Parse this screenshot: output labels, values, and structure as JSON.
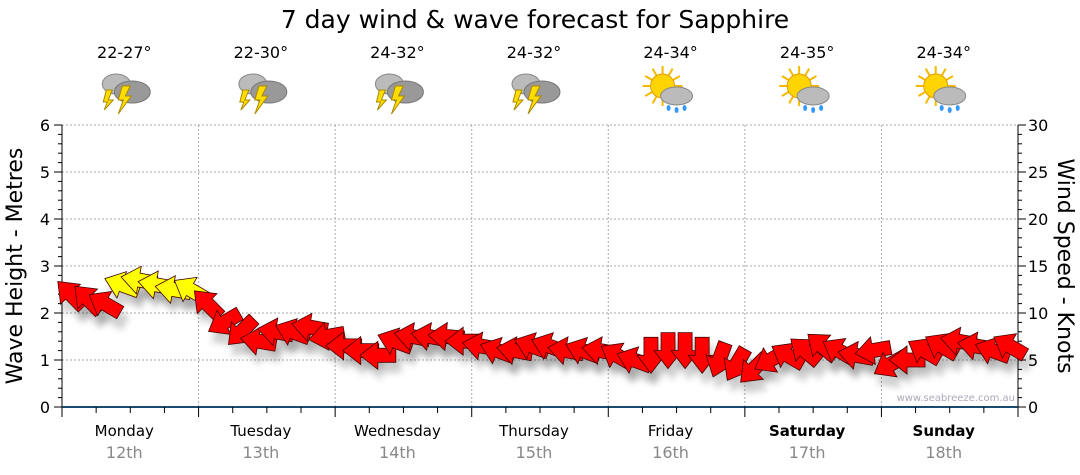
{
  "chart_data": {
    "type": "line",
    "title": "7 day wind & wave forecast for Sapphire",
    "ylabel_left": "Wave Height - Metres",
    "ylabel_right": "Wind Speed - Knots",
    "ylim_left": [
      0,
      6
    ],
    "ylim_right": [
      0,
      30
    ],
    "yticks_left": [
      "0",
      "1",
      "2",
      "3",
      "4",
      "5",
      "6"
    ],
    "yticks_right": [
      "0",
      "5",
      "10",
      "15",
      "20",
      "25",
      "30"
    ],
    "grid": true,
    "watermark": "www.seabreeze.com.au",
    "days": [
      {
        "name": "Monday",
        "date": "12th",
        "temp": "22-27°",
        "icon": "storm-icon",
        "bold": false
      },
      {
        "name": "Tuesday",
        "date": "13th",
        "temp": "22-30°",
        "icon": "storm-icon",
        "bold": false
      },
      {
        "name": "Wednesday",
        "date": "14th",
        "temp": "24-32°",
        "icon": "storm-icon",
        "bold": false
      },
      {
        "name": "Thursday",
        "date": "15th",
        "temp": "24-32°",
        "icon": "storm-icon",
        "bold": false
      },
      {
        "name": "Friday",
        "date": "16th",
        "temp": "24-34°",
        "icon": "sun-shower-icon",
        "bold": false
      },
      {
        "name": "Saturday",
        "date": "17th",
        "temp": "24-35°",
        "icon": "sun-shower-icon",
        "bold": true
      },
      {
        "name": "Sunday",
        "date": "18th",
        "temp": "24-34°",
        "icon": "sun-shower-icon",
        "bold": true
      }
    ],
    "wind_series": {
      "name": "Wind Speed (knots), 3-hourly",
      "speed": [
        12,
        11.5,
        11,
        13,
        13.5,
        13,
        12.5,
        12.5,
        11,
        9,
        8,
        7,
        8,
        8,
        8.5,
        7.5,
        6.5,
        6,
        5.5,
        7,
        7.5,
        7.5,
        7.5,
        7,
        6.5,
        6,
        6,
        6.5,
        6.5,
        6,
        6,
        6,
        5.5,
        5,
        5.5,
        6,
        6,
        5.5,
        5,
        4.5,
        4,
        5,
        5.5,
        6,
        6.5,
        6,
        5.5,
        6,
        4.5,
        5,
        6,
        6.5,
        7,
        6.5,
        6,
        6.5
      ],
      "direction_from_deg": [
        135,
        135,
        120,
        110,
        100,
        100,
        100,
        120,
        135,
        60,
        45,
        100,
        100,
        110,
        100,
        80,
        90,
        90,
        90,
        110,
        100,
        100,
        95,
        90,
        100,
        110,
        100,
        110,
        110,
        100,
        110,
        100,
        120,
        110,
        0,
        0,
        0,
        0,
        20,
        30,
        45,
        60,
        120,
        130,
        130,
        120,
        100,
        80,
        60,
        90,
        120,
        120,
        100,
        100,
        110,
        120
      ],
      "colors": {
        "strong": "#ffff00",
        "normal": "#ff0000"
      },
      "strong_threshold_knots": 12.5
    }
  }
}
